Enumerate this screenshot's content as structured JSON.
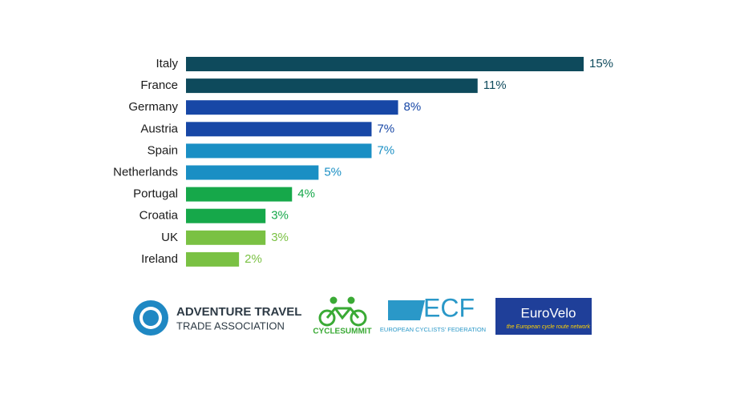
{
  "chart_data": {
    "type": "bar",
    "orientation": "horizontal",
    "categories": [
      "Italy",
      "France",
      "Germany",
      "Austria",
      "Spain",
      "Netherlands",
      "Portugal",
      "Croatia",
      "UK",
      "Ireland"
    ],
    "values": [
      15,
      11,
      8,
      7,
      7,
      5,
      4,
      3,
      3,
      2
    ],
    "value_labels": [
      "15%",
      "11%",
      "8%",
      "7%",
      "7%",
      "5%",
      "4%",
      "3%",
      "3%",
      "2%"
    ],
    "colors": [
      "#0e4a5c",
      "#0e4a5c",
      "#1747a6",
      "#1747a6",
      "#1a8fc4",
      "#1a8fc4",
      "#16a84a",
      "#16a84a",
      "#7ac143",
      "#7ac143"
    ]
  },
  "logos": {
    "atta": {
      "line1": "ADVENTURE TRAVEL",
      "line2": "TRADE ASSOCIATION"
    },
    "cyclesummit": {
      "name": "CYCLESUMMIT"
    },
    "ecf": {
      "name": "ECF",
      "subtitle": "EUROPEAN CYCLISTS' FEDERATION"
    },
    "eurovelo": {
      "name": "EuroVelo",
      "tagline": "the European cycle route network"
    }
  }
}
